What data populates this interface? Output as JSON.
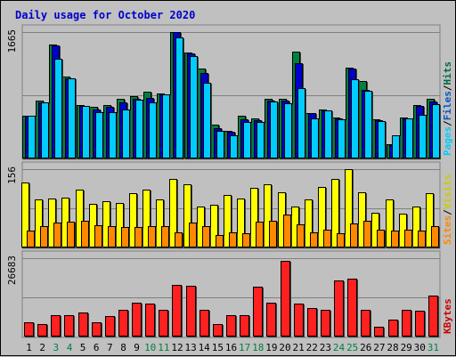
{
  "chart_data": {
    "type": "bar",
    "title": "Daily usage for October 2020",
    "categories": [
      "1",
      "2",
      "3",
      "4",
      "5",
      "6",
      "7",
      "8",
      "9",
      "10",
      "11",
      "12",
      "13",
      "14",
      "15",
      "16",
      "17",
      "18",
      "19",
      "20",
      "21",
      "22",
      "23",
      "24",
      "25",
      "26",
      "27",
      "28",
      "29",
      "30",
      "31"
    ],
    "weekend_days": [
      "3",
      "4",
      "10",
      "11",
      "17",
      "18",
      "24",
      "25",
      "31"
    ],
    "panels": [
      {
        "id": "requests",
        "ymax_label": "1665",
        "ylim": [
          0,
          1665
        ],
        "legend": [
          {
            "label": "Pages",
            "color": "#00ccff"
          },
          {
            "label": "/",
            "color": "#000000"
          },
          {
            "label": "Files",
            "color": "#0055cc"
          },
          {
            "label": "/",
            "color": "#000000"
          },
          {
            "label": "Hits",
            "color": "#006644"
          }
        ],
        "series": [
          {
            "name": "Hits",
            "color": "#008040",
            "values": [
              560,
              760,
              1500,
              1080,
              700,
              680,
              700,
              790,
              820,
              880,
              860,
              1670,
              1400,
              1180,
              450,
              360,
              560,
              530,
              790,
              780,
              1410,
              600,
              640,
              540,
              1200,
              1020,
              520,
              190,
              540,
              700,
              780
            ]
          },
          {
            "name": "Files",
            "color": "#0000cc",
            "values": [
              560,
              740,
              1490,
              1050,
              690,
              640,
              680,
              740,
              780,
              800,
              840,
              1660,
              1380,
              1120,
              400,
              350,
              520,
              510,
              760,
              760,
              1260,
              600,
              630,
              530,
              1180,
              900,
              500,
              180,
              530,
              690,
              750
            ]
          },
          {
            "name": "Pages",
            "color": "#00ccff",
            "values": [
              560,
              740,
              1310,
              1050,
              690,
              610,
              610,
              640,
              770,
              740,
              840,
              1600,
              1350,
              1000,
              360,
              300,
              480,
              480,
              750,
              730,
              930,
              530,
              630,
              520,
              1040,
              890,
              490,
              310,
              530,
              580,
              720
            ]
          }
        ]
      },
      {
        "id": "visits",
        "ymax_label": "156",
        "ylim": [
          0,
          156
        ],
        "legend": [
          {
            "label": "Sites",
            "color": "#ff8800"
          },
          {
            "label": "/",
            "color": "#000000"
          },
          {
            "label": "Visits",
            "color": "#cccc00"
          }
        ],
        "series": [
          {
            "name": "Visits",
            "color": "#ffff00",
            "values": [
              130,
              95,
              98,
              100,
              115,
              86,
              92,
              88,
              108,
              115,
              96,
              136,
              126,
              82,
              85,
              104,
              98,
              118,
              126,
              110,
              82,
              95,
              120,
              137,
              156,
              110,
              70,
              96,
              68,
              82,
              109
            ]
          },
          {
            "name": "Sites",
            "color": "#ff8800",
            "values": [
              33,
              43,
              50,
              52,
              54,
              44,
              42,
              40,
              40,
              42,
              42,
              30,
              50,
              42,
              25,
              30,
              28,
              52,
              54,
              66,
              46,
              30,
              36,
              28,
              48,
              54,
              36,
              34,
              36,
              34,
              42
            ]
          }
        ]
      },
      {
        "id": "kbytes",
        "ymax_label": "26683",
        "ylim": [
          0,
          26683
        ],
        "legend": [
          {
            "label": "KBytes",
            "color": "#cc0000"
          }
        ],
        "series": [
          {
            "name": "KBytes",
            "color": "#ff2020",
            "values": [
              5000,
              4200,
              7400,
              7400,
              8300,
              4700,
              7000,
              9000,
              11400,
              11200,
              9100,
              17700,
              17300,
              9000,
              4200,
              7200,
              7200,
              17100,
              11400,
              25800,
              11200,
              9700,
              9100,
              19100,
              19700,
              9000,
              3300,
              5800,
              9100,
              8800,
              13900
            ]
          }
        ]
      }
    ]
  }
}
